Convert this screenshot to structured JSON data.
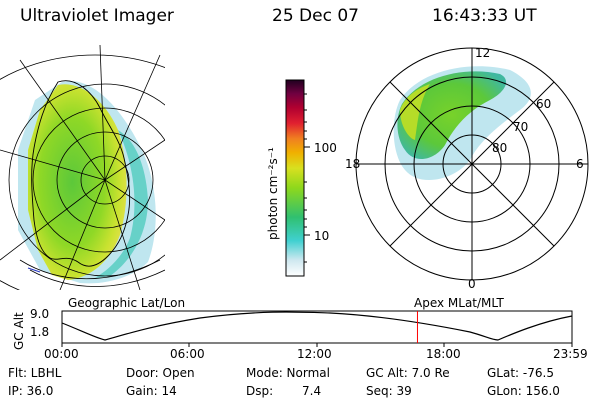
{
  "header": {
    "title": "Ultraviolet Imager",
    "date": "25 Dec 07",
    "time": "16:43:33 UT"
  },
  "colorbar": {
    "label": "photon cm⁻²s⁻¹",
    "ticks": [
      "100",
      "10"
    ]
  },
  "polar_plot": {
    "clock_labels": [
      "12",
      "18",
      "6",
      "0"
    ],
    "lat_labels": [
      "60",
      "70",
      "80"
    ]
  },
  "timeline": {
    "left_caption": "Geographic Lat/Lon",
    "right_caption": "Apex MLat/MLT",
    "y_axis_label": "GC Alt",
    "y_ticks": [
      "9.0",
      "1.8"
    ],
    "x_ticks": [
      "00:00",
      "06:00",
      "12:00",
      "18:00",
      "23:59"
    ],
    "marker_fraction": 0.697,
    "marker_color": "#ff0000"
  },
  "info": {
    "flt": "Flt: LBHL",
    "ip": "IP: 36.0",
    "door": "Door: Open",
    "gain": "Gain: 14",
    "mode": "Mode: Normal",
    "dsp_label": "Dsp:",
    "dsp_value": "7.4",
    "gc_alt": "GC Alt: 7.0 Re",
    "seq": "Seq: 39",
    "glat": "GLat: -76.5",
    "glon": "GLon: 156.0"
  }
}
